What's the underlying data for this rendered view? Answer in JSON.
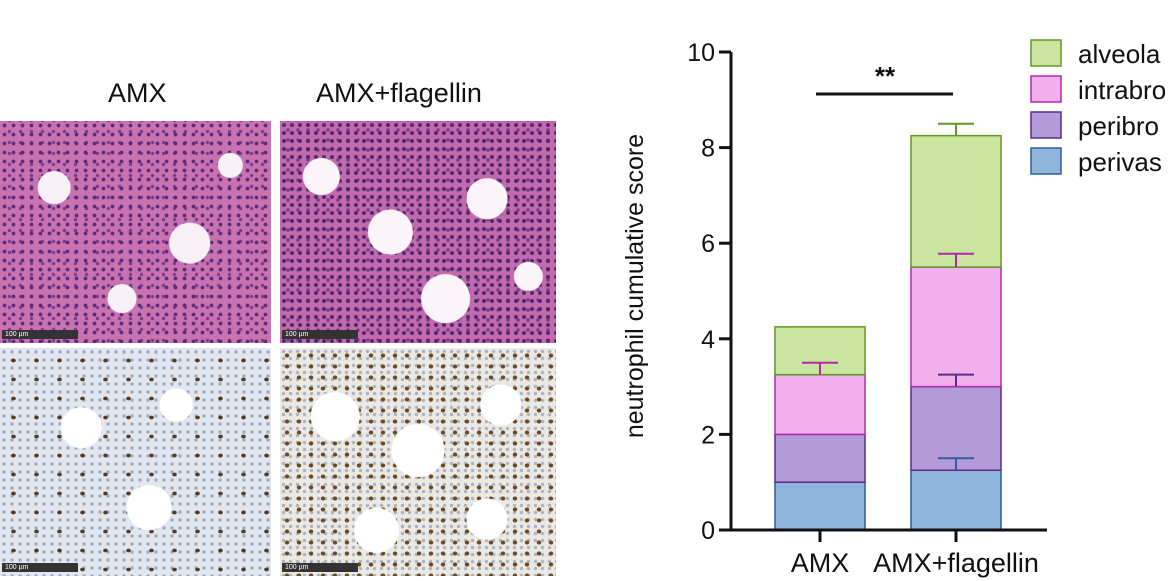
{
  "micrographs": {
    "column_titles": [
      "AMX",
      "AMX+flagellin"
    ],
    "scale_label": "100 µm"
  },
  "chart_data": {
    "type": "bar",
    "stacked": true,
    "categories": [
      "AMX",
      "AMX+flagellin"
    ],
    "ylabel": "neutrophil cumulative score",
    "xlabel": "",
    "ylim": [
      0,
      10
    ],
    "yticks": [
      0,
      2,
      4,
      6,
      8,
      10
    ],
    "series": [
      {
        "name": "perivas",
        "values": [
          1.0,
          1.25
        ],
        "errors": [
          null,
          0.25
        ],
        "color": "#8eb4dc",
        "edge": "#2f5f9e"
      },
      {
        "name": "peribro",
        "values": [
          1.0,
          1.75
        ],
        "errors": [
          null,
          0.25
        ],
        "color": "#b39ad9",
        "edge": "#5a2d8c"
      },
      {
        "name": "intrabro",
        "values": [
          1.25,
          2.5
        ],
        "errors": [
          0.25,
          0.28
        ],
        "color": "#f1b0ec",
        "edge": "#b328ad"
      },
      {
        "name": "alveola",
        "values": [
          1.0,
          2.75
        ],
        "errors": [
          null,
          0.25
        ],
        "color": "#c9e59f",
        "edge": "#5f9a22"
      }
    ],
    "annotation": "**",
    "legend_position": "right (clipped)"
  }
}
